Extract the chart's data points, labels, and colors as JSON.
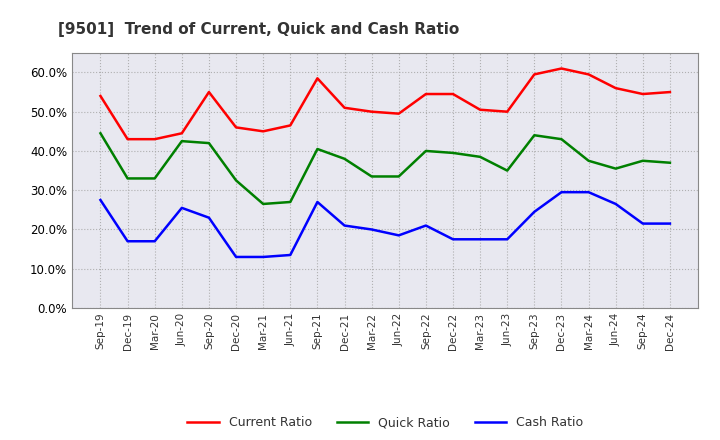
{
  "title": "[9501]  Trend of Current, Quick and Cash Ratio",
  "x_labels": [
    "Sep-19",
    "Dec-19",
    "Mar-20",
    "Jun-20",
    "Sep-20",
    "Dec-20",
    "Mar-21",
    "Jun-21",
    "Sep-21",
    "Dec-21",
    "Mar-22",
    "Jun-22",
    "Sep-22",
    "Dec-22",
    "Mar-23",
    "Jun-23",
    "Sep-23",
    "Dec-23",
    "Mar-24",
    "Jun-24",
    "Sep-24",
    "Dec-24"
  ],
  "current_ratio": [
    0.54,
    0.43,
    0.43,
    0.445,
    0.55,
    0.46,
    0.45,
    0.465,
    0.585,
    0.51,
    0.5,
    0.495,
    0.545,
    0.545,
    0.505,
    0.5,
    0.595,
    0.61,
    0.595,
    0.56,
    0.545,
    0.55
  ],
  "quick_ratio": [
    0.445,
    0.33,
    0.33,
    0.425,
    0.42,
    0.325,
    0.265,
    0.27,
    0.405,
    0.38,
    0.335,
    0.335,
    0.4,
    0.395,
    0.385,
    0.35,
    0.44,
    0.43,
    0.375,
    0.355,
    0.375,
    0.37
  ],
  "cash_ratio": [
    0.275,
    0.17,
    0.17,
    0.255,
    0.23,
    0.13,
    0.13,
    0.135,
    0.27,
    0.21,
    0.2,
    0.185,
    0.21,
    0.175,
    0.175,
    0.175,
    0.245,
    0.295,
    0.295,
    0.265,
    0.215,
    0.215
  ],
  "current_color": "#FF0000",
  "quick_color": "#008000",
  "cash_color": "#0000FF",
  "ylim": [
    0.0,
    0.65
  ],
  "yticks": [
    0.0,
    0.1,
    0.2,
    0.3,
    0.4,
    0.5,
    0.6
  ],
  "grid_color": "#AAAAAA",
  "background_color": "#FFFFFF",
  "plot_bg_color": "#E8E8F0"
}
